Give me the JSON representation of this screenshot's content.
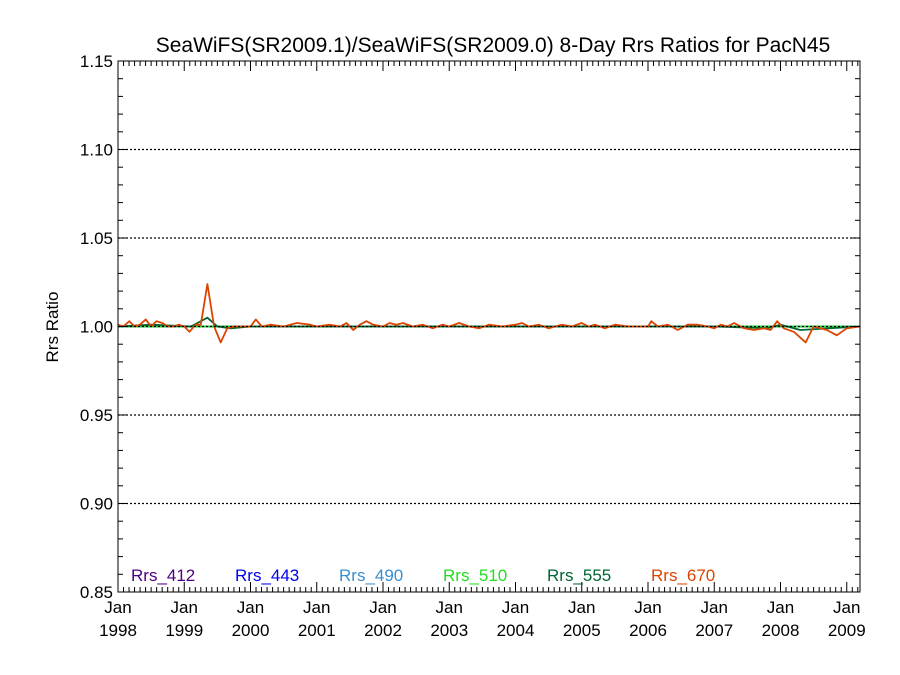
{
  "chart_data": {
    "type": "line",
    "title": "SeaWiFS(SR2009.1)/SeaWiFS(SR2009.0) 8-Day Rrs Ratios for PacN45",
    "xlabel": "",
    "ylabel": "Rrs Ratio",
    "ylim": [
      0.85,
      1.15
    ],
    "xlim": [
      1998.0,
      2009.2
    ],
    "yticks": [
      0.85,
      0.9,
      0.95,
      1.0,
      1.05,
      1.1,
      1.15
    ],
    "ytick_labels": [
      "0.85",
      "0.90",
      "0.95",
      "1.00",
      "1.05",
      "1.10",
      "1.15"
    ],
    "xticks": [
      1998,
      1999,
      2000,
      2001,
      2002,
      2003,
      2004,
      2005,
      2006,
      2007,
      2008,
      2009
    ],
    "xtick_labels": [
      [
        "Jan",
        "1998"
      ],
      [
        "Jan",
        "1999"
      ],
      [
        "Jan",
        "2000"
      ],
      [
        "Jan",
        "2001"
      ],
      [
        "Jan",
        "2002"
      ],
      [
        "Jan",
        "2003"
      ],
      [
        "Jan",
        "2004"
      ],
      [
        "Jan",
        "2005"
      ],
      [
        "Jan",
        "2006"
      ],
      [
        "Jan",
        "2007"
      ],
      [
        "Jan",
        "2008"
      ],
      [
        "Jan",
        "2009"
      ]
    ],
    "grid": "horizontal dotted",
    "reference_line": 1.0,
    "legend_position": "bottom",
    "series": [
      {
        "name": "Rrs_412",
        "color": "#4b0082",
        "x": [
          1998.0,
          2009.2
        ],
        "y": [
          1.0,
          1.0
        ]
      },
      {
        "name": "Rrs_443",
        "color": "#0000ee",
        "x": [
          1998.0,
          2009.2
        ],
        "y": [
          1.0,
          1.0
        ]
      },
      {
        "name": "Rrs_490",
        "color": "#3a8fd0",
        "x": [
          1998.0,
          2009.2
        ],
        "y": [
          1.0,
          1.0
        ]
      },
      {
        "name": "Rrs_510",
        "color": "#22dd22",
        "x": [
          1998.0,
          2009.2
        ],
        "y": [
          1.0,
          1.0
        ]
      },
      {
        "name": "Rrs_555",
        "color": "#006633",
        "x": [
          1998.0,
          1998.5,
          1999.1,
          1999.35,
          1999.5,
          1999.7,
          2000.0,
          2001.0,
          2002.0,
          2003.0,
          2004.0,
          2005.0,
          2006.0,
          2007.0,
          2007.8,
          2008.0,
          2008.3,
          2009.2
        ],
        "y": [
          1.0,
          1.001,
          1.0,
          1.005,
          1.0,
          0.999,
          1.0,
          1.0,
          1.0,
          1.0,
          1.0,
          1.0,
          1.0,
          1.0,
          0.999,
          1.001,
          0.998,
          1.0
        ]
      },
      {
        "name": "Rrs_670",
        "color": "#dd4400",
        "x": [
          1998.0,
          1998.08,
          1998.17,
          1998.25,
          1998.33,
          1998.42,
          1998.5,
          1998.58,
          1998.67,
          1998.75,
          1998.83,
          1998.92,
          1999.0,
          1999.08,
          1999.17,
          1999.25,
          1999.35,
          1999.45,
          1999.55,
          1999.65,
          1999.75,
          1999.85,
          1999.95,
          2000.0,
          2000.08,
          2000.17,
          2000.3,
          2000.5,
          2000.7,
          2000.9,
          2001.0,
          2001.2,
          2001.35,
          2001.45,
          2001.55,
          2001.65,
          2001.75,
          2001.85,
          2002.0,
          2002.1,
          2002.2,
          2002.3,
          2002.45,
          2002.6,
          2002.75,
          2002.9,
          2003.0,
          2003.15,
          2003.3,
          2003.45,
          2003.6,
          2003.8,
          2004.0,
          2004.1,
          2004.2,
          2004.35,
          2004.5,
          2004.7,
          2004.85,
          2005.0,
          2005.1,
          2005.2,
          2005.35,
          2005.5,
          2005.7,
          2005.85,
          2006.0,
          2006.05,
          2006.15,
          2006.3,
          2006.45,
          2006.6,
          2006.75,
          2006.9,
          2007.0,
          2007.1,
          2007.2,
          2007.3,
          2007.45,
          2007.6,
          2007.75,
          2007.85,
          2007.95,
          2008.05,
          2008.2,
          2008.38,
          2008.5,
          2008.7,
          2008.85,
          2009.0,
          2009.2
        ],
        "y": [
          1.001,
          1.0,
          1.003,
          1.0,
          1.001,
          1.004,
          1.0,
          1.003,
          1.002,
          1.0,
          1.0,
          1.001,
          1.0,
          0.997,
          1.001,
          1.001,
          1.024,
          1.0,
          0.991,
          0.999,
          1.0,
          1.0,
          1.0,
          1.0,
          1.004,
          1.0,
          1.001,
          1.0,
          1.002,
          1.001,
          1.0,
          1.001,
          1.0,
          1.002,
          0.998,
          1.001,
          1.003,
          1.001,
          1.0,
          1.002,
          1.001,
          1.002,
          1.0,
          1.001,
          0.999,
          1.001,
          1.0,
          1.002,
          1.0,
          0.999,
          1.001,
          1.0,
          1.001,
          1.002,
          1.0,
          1.001,
          0.999,
          1.001,
          1.0,
          1.002,
          1.0,
          1.001,
          0.999,
          1.001,
          1.0,
          1.0,
          1.0,
          1.003,
          1.0,
          1.001,
          0.998,
          1.001,
          1.001,
          1.0,
          0.999,
          1.001,
          1.0,
          1.002,
          0.999,
          0.998,
          0.999,
          0.998,
          1.003,
          0.999,
          0.997,
          0.991,
          1.0,
          0.998,
          0.995,
          0.999,
          1.0
        ]
      }
    ]
  }
}
